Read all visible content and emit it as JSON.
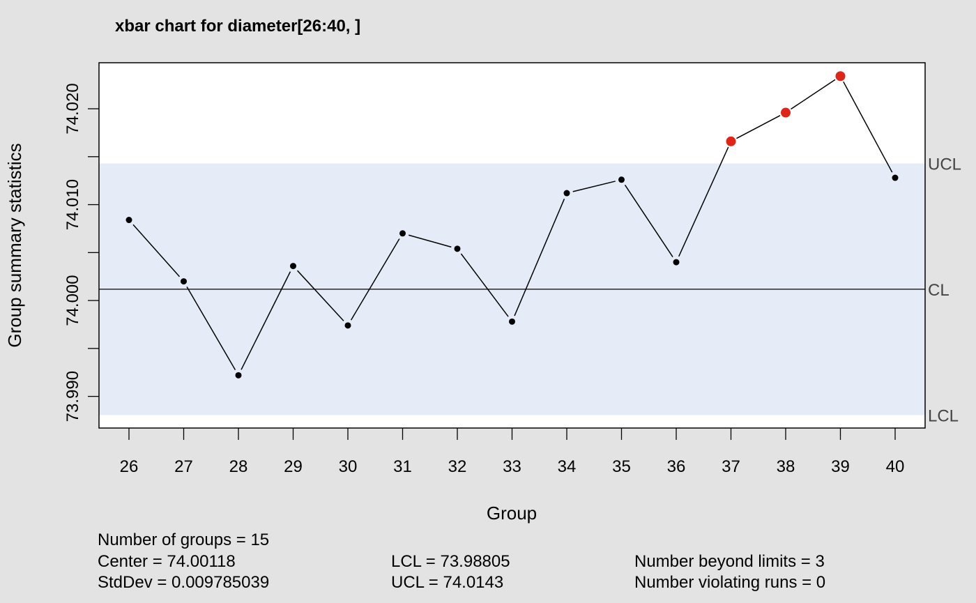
{
  "chart_data": {
    "type": "line",
    "title": "xbar chart for diameter[26:40, ]",
    "xlabel": "Group",
    "ylabel": "Group summary statistics",
    "x": [
      26,
      27,
      28,
      29,
      30,
      31,
      32,
      33,
      34,
      35,
      36,
      37,
      38,
      39,
      40
    ],
    "values": [
      74.0084,
      74.002,
      73.9922,
      74.0036,
      73.9974,
      74.007,
      74.0054,
      73.9978,
      74.0112,
      74.0126,
      74.004,
      74.0166,
      74.0196,
      74.0234,
      74.0128
    ],
    "beyond_limits": [
      false,
      false,
      false,
      false,
      false,
      false,
      false,
      false,
      false,
      false,
      false,
      true,
      true,
      true,
      false
    ],
    "y_ticks": [
      "73.990",
      "74.000",
      "74.010",
      "74.020"
    ],
    "ylim": [
      73.9867,
      74.0248
    ],
    "limits": {
      "UCL": 74.0143,
      "CL": 74.00118,
      "LCL": 73.98805
    },
    "limit_labels": {
      "ucl": "UCL",
      "cl": "CL",
      "lcl": "LCL"
    },
    "grid": false,
    "colors": {
      "background": "#e3e3e3",
      "plot_area": "#ffffff",
      "control_band": "#e6ecf7",
      "line": "#000000",
      "point": "#000000",
      "violation_point": "#e02518",
      "limit_label": "#444444"
    }
  },
  "stats": {
    "groups": "Number of groups = 15",
    "center": "Center = 74.00118",
    "stddev": "StdDev = 0.009785039",
    "lcl": "LCL = 73.98805",
    "ucl": "UCL = 74.0143",
    "beyond": "Number beyond limits = 3",
    "violating": "Number violating runs = 0"
  }
}
